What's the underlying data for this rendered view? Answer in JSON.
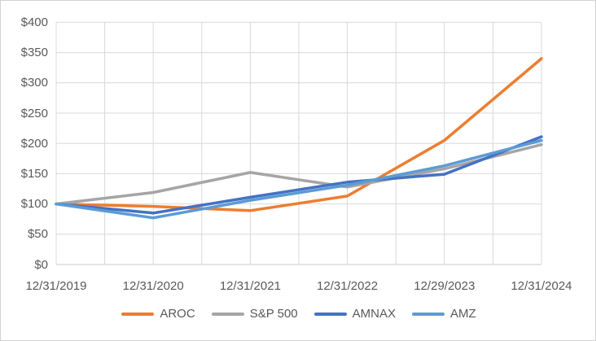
{
  "window": {
    "background": "#ffffff",
    "border_color": "#d2d2d2"
  },
  "chart_data": {
    "type": "line",
    "title": "",
    "xlabel": "",
    "ylabel": "",
    "x_labels": [
      "12/31/2019",
      "12/31/2020",
      "12/31/2021",
      "12/31/2022",
      "12/29/2023",
      "12/31/2024"
    ],
    "ylim": [
      0,
      400
    ],
    "ytick_step": 50,
    "ytick_labels": [
      "$0",
      "$50",
      "$100",
      "$150",
      "$200",
      "$250",
      "$300",
      "$350",
      "$400"
    ],
    "grid": {
      "horizontal": true,
      "vertical": true,
      "vertical_minor_per_category": 2
    },
    "gridline_color": "#d9d9d9",
    "axis_text_color": "#595959",
    "legend_position": "bottom",
    "series": [
      {
        "name": "AROC",
        "color": "#ED7D31",
        "values": [
          100,
          96,
          89,
          113,
          205,
          340
        ]
      },
      {
        "name": "S&P 500",
        "color": "#A5A5A5",
        "values": [
          100,
          119,
          152,
          128,
          158,
          198
        ]
      },
      {
        "name": "AMNAX",
        "color": "#4472C4",
        "values": [
          100,
          85,
          111,
          136,
          149,
          211
        ]
      },
      {
        "name": "AMZ",
        "color": "#5B9BD5",
        "values": [
          100,
          77,
          106,
          131,
          163,
          205
        ]
      }
    ]
  }
}
